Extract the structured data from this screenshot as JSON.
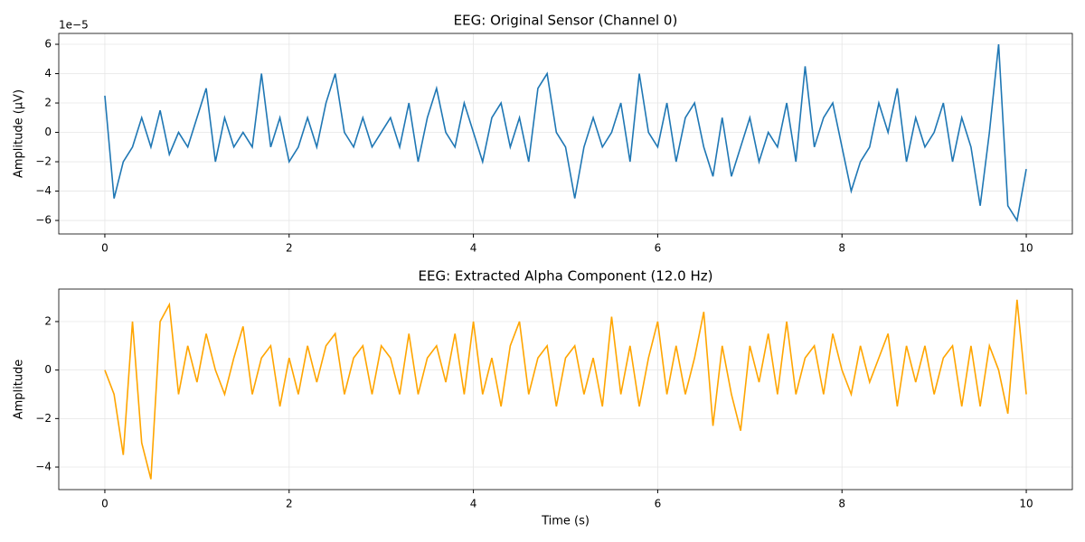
{
  "chart_data": [
    {
      "type": "line",
      "title": "EEG: Original Sensor (Channel 0)",
      "y_label": "Amplitude (µV)",
      "offset_text": "1e−5",
      "xlim": [
        -0.5,
        10.5
      ],
      "ylim": [
        -6.92,
        6.74
      ],
      "grid": true,
      "xticks": [
        0,
        2,
        4,
        6,
        8,
        10
      ],
      "yticks": [
        {
          "value": -6,
          "label": "−6"
        },
        {
          "value": -4,
          "label": "−4"
        },
        {
          "value": -2,
          "label": "−2"
        },
        0,
        2,
        4,
        6
      ],
      "x": [
        0,
        0.1,
        0.2,
        0.3,
        0.4,
        0.5,
        0.6,
        0.7,
        0.8,
        0.9,
        1,
        1.1,
        1.2,
        1.3,
        1.4,
        1.5,
        1.6,
        1.7,
        1.8,
        1.9,
        2,
        2.1,
        2.2,
        2.3,
        2.4,
        2.5,
        2.6,
        2.7,
        2.8,
        2.9,
        3,
        3.1,
        3.2,
        3.3,
        3.4,
        3.5,
        3.6,
        3.7,
        3.8,
        3.9,
        4,
        4.1,
        4.2,
        4.3,
        4.4,
        4.5,
        4.6,
        4.7,
        4.8,
        4.9,
        5,
        5.1,
        5.2,
        5.3,
        5.4,
        5.5,
        5.6,
        5.7,
        5.8,
        5.9,
        6,
        6.1,
        6.2,
        6.3,
        6.4,
        6.5,
        6.6,
        6.7,
        6.8,
        6.9,
        7,
        7.1,
        7.2,
        7.3,
        7.4,
        7.5,
        7.6,
        7.7,
        7.8,
        7.9,
        8,
        8.1,
        8.2,
        8.3,
        8.4,
        8.5,
        8.6,
        8.7,
        8.8,
        8.9,
        9,
        9.1,
        9.2,
        9.3,
        9.4,
        9.5,
        9.6,
        9.7,
        9.8,
        9.9,
        10
      ],
      "series": [
        {
          "color": "#1f77b4",
          "values": [
            2.5,
            -4.5,
            -2,
            -1,
            1,
            -1,
            1.5,
            -1.5,
            0,
            -1,
            1,
            3,
            -2,
            1,
            -1,
            0,
            -1,
            4,
            -1,
            1,
            -2,
            -1,
            1,
            -1,
            2,
            4,
            0,
            -1,
            1,
            -1,
            0,
            1,
            -1,
            2,
            -2,
            1,
            3,
            0,
            -1,
            2,
            0,
            -2,
            1,
            2,
            -1,
            1,
            -2,
            3,
            4,
            0,
            -1,
            -4.5,
            -1,
            1,
            -1,
            0,
            2,
            -2,
            4,
            0,
            -1,
            2,
            -2,
            1,
            2,
            -1,
            -3,
            1,
            -3,
            -1,
            1,
            -2,
            0,
            -1,
            2,
            -2,
            4.5,
            -1,
            1,
            2,
            -1,
            -4,
            -2,
            -1,
            2,
            0,
            3,
            -2,
            1,
            -1,
            0,
            2,
            -2,
            1,
            -1,
            -5,
            0,
            6,
            -5,
            -6,
            -2.5
          ]
        }
      ]
    },
    {
      "type": "line",
      "title": "EEG: Extracted Alpha Component (12.0 Hz)",
      "y_label": "Amplitude",
      "x_label": "Time (s)",
      "xlim": [
        -0.5,
        10.5
      ],
      "ylim": [
        -4.93,
        3.34
      ],
      "grid": true,
      "xticks": [
        0,
        2,
        4,
        6,
        8,
        10
      ],
      "yticks": [
        {
          "value": -4,
          "label": "−4"
        },
        {
          "value": -2,
          "label": "−2"
        },
        0,
        2
      ],
      "x": [
        0,
        0.1,
        0.2,
        0.3,
        0.4,
        0.5,
        0.6,
        0.7,
        0.8,
        0.9,
        1,
        1.1,
        1.2,
        1.3,
        1.4,
        1.5,
        1.6,
        1.7,
        1.8,
        1.9,
        2,
        2.1,
        2.2,
        2.3,
        2.4,
        2.5,
        2.6,
        2.7,
        2.8,
        2.9,
        3,
        3.1,
        3.2,
        3.3,
        3.4,
        3.5,
        3.6,
        3.7,
        3.8,
        3.9,
        4,
        4.1,
        4.2,
        4.3,
        4.4,
        4.5,
        4.6,
        4.7,
        4.8,
        4.9,
        5,
        5.1,
        5.2,
        5.3,
        5.4,
        5.5,
        5.6,
        5.7,
        5.8,
        5.9,
        6,
        6.1,
        6.2,
        6.3,
        6.4,
        6.5,
        6.6,
        6.7,
        6.8,
        6.9,
        7,
        7.1,
        7.2,
        7.3,
        7.4,
        7.5,
        7.6,
        7.7,
        7.8,
        7.9,
        8,
        8.1,
        8.2,
        8.3,
        8.4,
        8.5,
        8.6,
        8.7,
        8.8,
        8.9,
        9,
        9.1,
        9.2,
        9.3,
        9.4,
        9.5,
        9.6,
        9.7,
        9.8,
        9.9,
        10
      ],
      "series": [
        {
          "color": "#ffa500",
          "values": [
            0,
            -1,
            -3.5,
            2,
            -3,
            -4.5,
            2,
            2.7,
            -1,
            1,
            -0.5,
            1.5,
            0,
            -1,
            0.5,
            1.8,
            -1,
            0.5,
            1,
            -1.5,
            0.5,
            -1,
            1,
            -0.5,
            1,
            1.5,
            -1,
            0.5,
            1,
            -1,
            1,
            0.5,
            -1,
            1.5,
            -1,
            0.5,
            1,
            -0.5,
            1.5,
            -1,
            2,
            -1,
            0.5,
            -1.5,
            1,
            2,
            -1,
            0.5,
            1,
            -1.5,
            0.5,
            1,
            -1,
            0.5,
            -1.5,
            2.2,
            -1,
            1,
            -1.5,
            0.5,
            2,
            -1,
            1,
            -1,
            0.5,
            2.4,
            -2.3,
            1,
            -1,
            -2.5,
            1,
            -0.5,
            1.5,
            -1,
            2,
            -1,
            0.5,
            1,
            -1,
            1.5,
            0,
            -1,
            1,
            -0.5,
            0.5,
            1.5,
            -1.5,
            1,
            -0.5,
            1,
            -1,
            0.5,
            1,
            -1.5,
            1,
            -1.5,
            1,
            0,
            -1.8,
            2.9,
            -1
          ]
        }
      ]
    }
  ]
}
